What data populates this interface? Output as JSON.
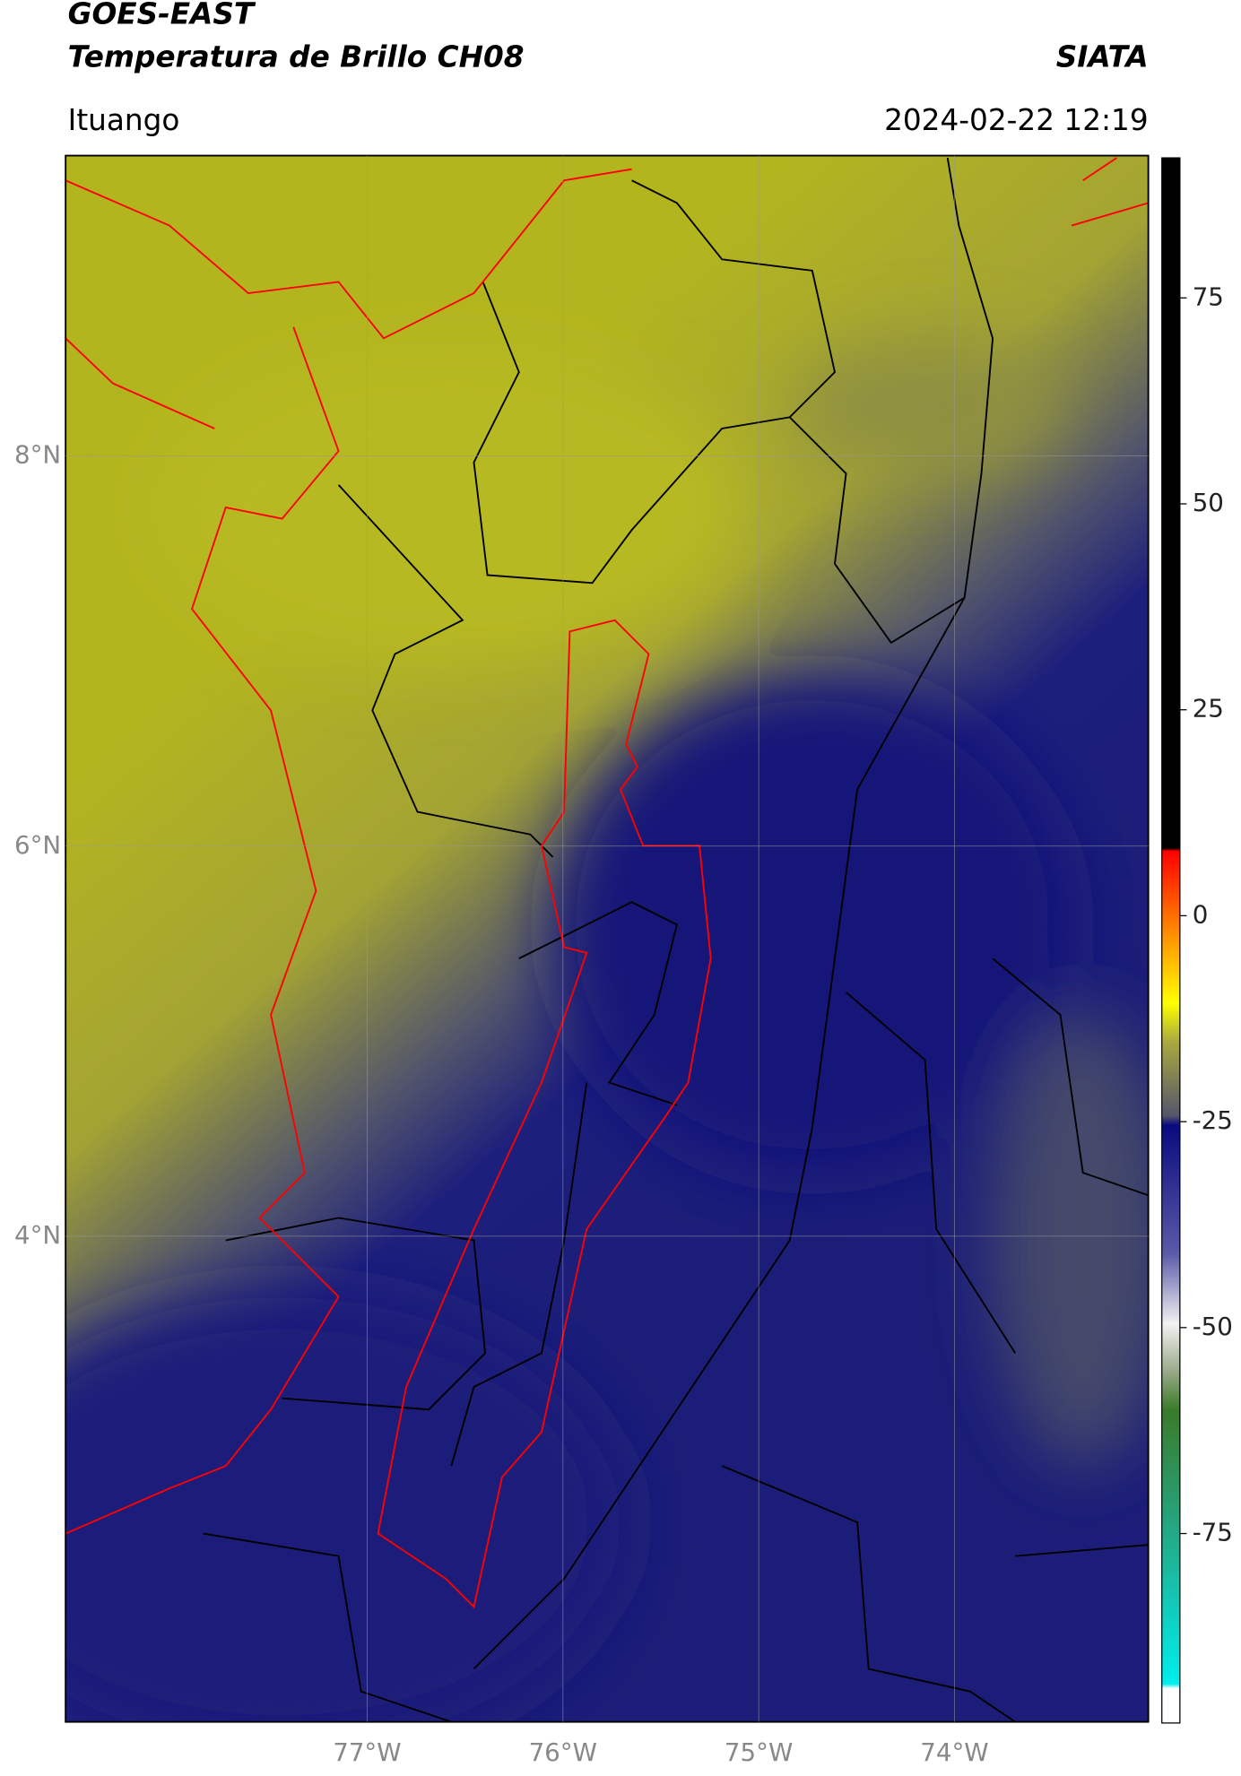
{
  "header": {
    "title": "GOES-EAST",
    "subtitle": "Temperatura de Brillo CH08",
    "source": "SIATA",
    "location": "Ituango",
    "datetime": "2024-02-22 12:19"
  },
  "map": {
    "xlim": [
      -78.54,
      -73.01
    ],
    "ylim": [
      1.51,
      9.54
    ],
    "xticks": [
      {
        "value": -77,
        "label": "77°W"
      },
      {
        "value": -76,
        "label": "76°W"
      },
      {
        "value": -75,
        "label": "75°W"
      },
      {
        "value": -74,
        "label": "74°W"
      }
    ],
    "yticks": [
      {
        "value": 8,
        "label": "8°N"
      },
      {
        "value": 6,
        "label": "6°N"
      },
      {
        "value": 4,
        "label": "4°N"
      }
    ],
    "grid": true
  },
  "colorbar": {
    "lim": [
      -98,
      92
    ],
    "ticks": [
      75,
      50,
      25,
      0,
      -25,
      -50,
      -75
    ]
  }
}
